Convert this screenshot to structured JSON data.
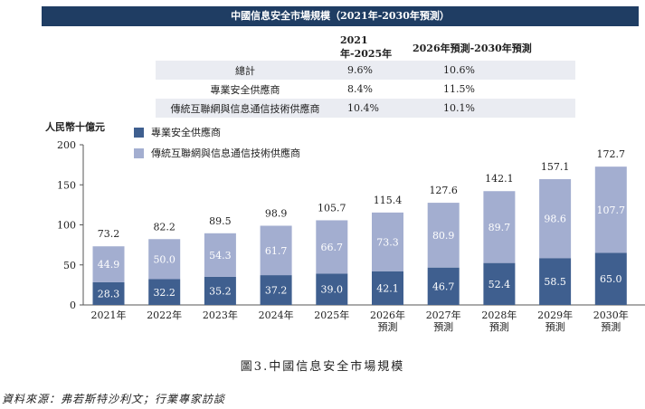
{
  "banner_title": "中國信息安全市場規模（2021年-2030年預測）",
  "cagr_table": {
    "headers": [
      "",
      "2021年-2025年",
      "2026年預測-2030年預測"
    ],
    "rows": [
      {
        "label": "總計",
        "v1": "9.6%",
        "v2": "10.6%"
      },
      {
        "label": "專業安全供應商",
        "v1": "8.4%",
        "v2": "11.5%"
      },
      {
        "label": "傳統互聯網與信息通信技術供應商",
        "v1": "10.4%",
        "v2": "10.1%"
      }
    ]
  },
  "chart_data": {
    "type": "bar",
    "stacked": true,
    "ylabel": "人民幣十億元",
    "ylim": [
      0,
      200
    ],
    "yticks": [
      0,
      50,
      100,
      150,
      200
    ],
    "categories": [
      [
        "2021年"
      ],
      [
        "2022年"
      ],
      [
        "2023年"
      ],
      [
        "2024年"
      ],
      [
        "2025年"
      ],
      [
        "2026年",
        "預測"
      ],
      [
        "2027年",
        "預測"
      ],
      [
        "2028年",
        "預測"
      ],
      [
        "2029年",
        "預測"
      ],
      [
        "2030年",
        "預測"
      ]
    ],
    "series": [
      {
        "name": "專業安全供應商",
        "color": "#3f5f8f",
        "values": [
          28.3,
          32.2,
          35.2,
          37.2,
          39.0,
          42.1,
          46.7,
          52.4,
          58.5,
          65.0
        ],
        "labels": [
          "28.3",
          "32.2",
          "35.2",
          "37.2",
          "39.0",
          "42.1",
          "46.7",
          "52.4",
          "58.5",
          "65.0"
        ]
      },
      {
        "name": "傳統互聯網與信息通信技術供應商",
        "color": "#a3aed0",
        "values": [
          44.9,
          50.0,
          54.3,
          61.7,
          66.7,
          73.3,
          80.9,
          89.7,
          98.6,
          107.7
        ],
        "labels": [
          "44.9",
          "50.0",
          "54.3",
          "61.7",
          "66.7",
          "73.3",
          "80.9",
          "89.7",
          "98.6",
          "107.7"
        ]
      }
    ],
    "totals": [
      73.2,
      82.2,
      89.5,
      98.9,
      105.7,
      115.4,
      127.6,
      142.1,
      157.1,
      172.7
    ],
    "total_labels": [
      "73.2",
      "82.2",
      "89.5",
      "98.9",
      "105.7",
      "115.4",
      "127.6",
      "142.1",
      "157.1",
      "172.7"
    ],
    "legend_position": "top-left"
  },
  "caption": "圖3.中國信息安全市場規模",
  "source": "資料來源：弗若斯特沙利文；行業專家訪談"
}
